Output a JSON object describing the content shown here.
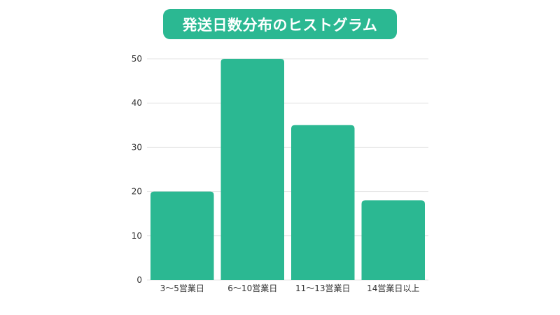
{
  "chart_data": {
    "type": "bar",
    "title": "発送日数分布のヒストグラム",
    "categories": [
      "3〜5営業日",
      "6〜10営業日",
      "11〜13営業日",
      "14営業日以上"
    ],
    "values": [
      20,
      50,
      35,
      18
    ],
    "yticks": [
      0,
      10,
      20,
      30,
      40,
      50
    ],
    "ylim": [
      0,
      50
    ],
    "grid": true,
    "legend": "none"
  },
  "colors": {
    "bar": "#2bb892",
    "title_background": "#2bb892",
    "title_text": "#ffffff",
    "grid": "#e3e3e3",
    "text": "#333333"
  }
}
